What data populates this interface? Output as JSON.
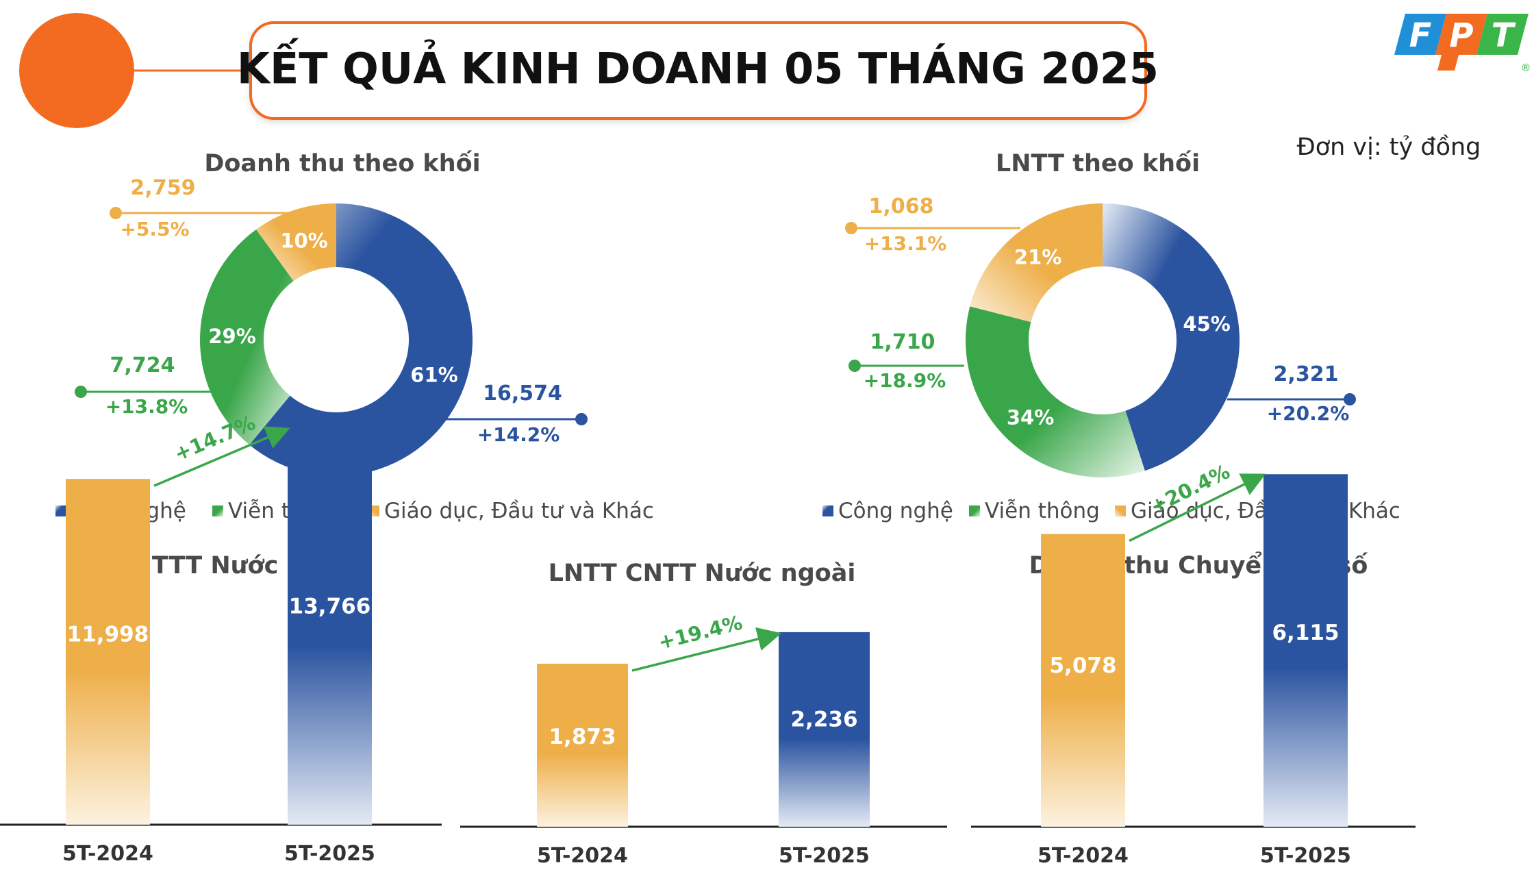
{
  "header": {
    "title": "KẾT QUẢ KINH DOANH 05 THÁNG 2025",
    "unit": "Đơn vị: tỷ đồng"
  },
  "logo": {
    "letters": [
      "F",
      "P",
      "T"
    ],
    "registered": "®",
    "colors": [
      "#1f8fd8",
      "#f26b21",
      "#3ab54a"
    ]
  },
  "colors": {
    "accent_orange": "#f26b21",
    "blue": "#2b54a0",
    "green": "#3aa64a",
    "gold": "#eeae48"
  },
  "legend": {
    "items": [
      "Công nghệ",
      "Viễn thông",
      "Giáo dục, Đầu tư và Khác"
    ]
  },
  "chart_data": [
    {
      "type": "pie",
      "title": "Doanh thu theo khối",
      "categories": [
        "Công nghệ",
        "Viễn thông",
        "Giáo dục, Đầu tư và Khác"
      ],
      "shares": [
        61,
        29,
        10
      ],
      "share_labels": [
        "61%",
        "29%",
        "10%"
      ],
      "values": [
        "16,574",
        "7,724",
        "2,759"
      ],
      "growth": [
        "+14.2%",
        "+13.8%",
        "+5.5%"
      ]
    },
    {
      "type": "pie",
      "title": "LNTT theo khối",
      "categories": [
        "Công nghệ",
        "Viễn thông",
        "Giáo dục, Đầu tư và Khác"
      ],
      "shares": [
        45,
        34,
        21
      ],
      "share_labels": [
        "45%",
        "34%",
        "21%"
      ],
      "values": [
        "2,321",
        "1,710",
        "1,068"
      ],
      "growth": [
        "+20.2%",
        "+18.9%",
        "+13.1%"
      ]
    },
    {
      "type": "bar",
      "title": "DT CNTTT Nước ngoài",
      "categories": [
        "5T-2024",
        "5T-2025"
      ],
      "values": [
        11998,
        13766
      ],
      "value_labels": [
        "11,998",
        "13,766"
      ],
      "growth": "+14.7%",
      "ylim": [
        0,
        14500
      ]
    },
    {
      "type": "bar",
      "title": "LNTT CNTT Nước ngoài",
      "categories": [
        "5T-2024",
        "5T-2025"
      ],
      "values": [
        1873,
        2236
      ],
      "value_labels": [
        "1,873",
        "2,236"
      ],
      "growth": "+19.4%",
      "ylim": [
        0,
        4250
      ]
    },
    {
      "type": "bar",
      "title": "Doanh thu Chuyển đổi số",
      "categories": [
        "5T-2024",
        "5T-2025"
      ],
      "values": [
        5078,
        6115
      ],
      "value_labels": [
        "5,078",
        "6,115"
      ],
      "growth": "+20.4%",
      "ylim": [
        0,
        6950
      ]
    }
  ]
}
